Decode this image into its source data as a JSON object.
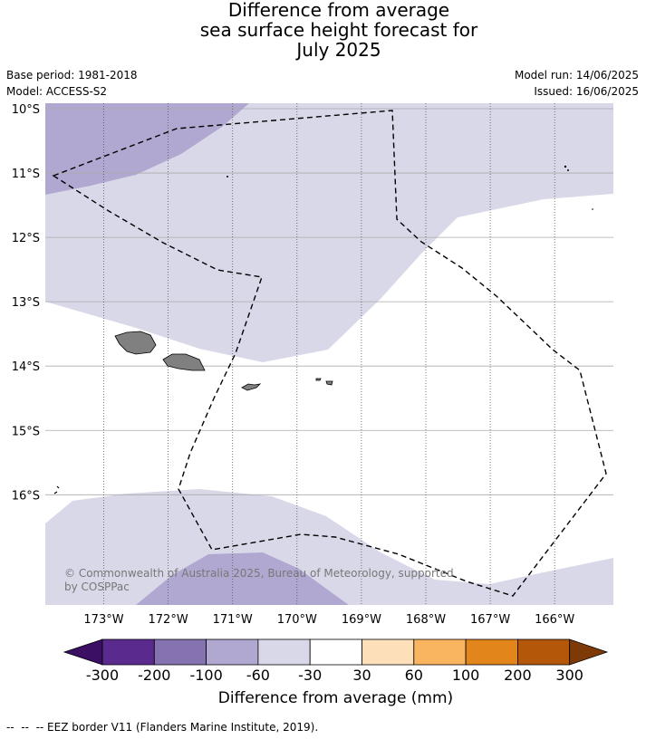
{
  "title_lines": [
    "Difference from average",
    "sea surface height forecast for",
    "July 2025"
  ],
  "meta": {
    "base_period": "Base period: 1981-2018",
    "model": "Model: ACCESS-S2",
    "model_run": "Model run: 14/06/2025",
    "issued": "Issued: 16/06/2025"
  },
  "lat_labels": [
    "10°S",
    "11°S",
    "12°S",
    "13°S",
    "14°S",
    "15°S",
    "16°S"
  ],
  "lon_labels": [
    "173°W",
    "172°W",
    "171°W",
    "170°W",
    "169°W",
    "168°W",
    "167°W",
    "166°W"
  ],
  "copyright": "© Commonwealth of Australia 2025, Bureau of Meteorology, supported by COSPPac",
  "colorbar": {
    "ticks": [
      "-300",
      "-200",
      "-100",
      "-60",
      "-30",
      "30",
      "60",
      "100",
      "200",
      "300"
    ],
    "colors": [
      "#3b0f63",
      "#5b2a8e",
      "#8473b0",
      "#b0a8d1",
      "#d9d8e9",
      "#ffffff",
      "#fde0b9",
      "#f9b55f",
      "#e2851a",
      "#b55708",
      "#7d3a07"
    ],
    "title": "Difference from average (mm)"
  },
  "footnote": "--  --  -- EEZ border V11 (Flanders Marine Institute, 2019).",
  "colors": {
    "land": "#808080",
    "gridline": "#aaaaaa",
    "eez": "#000000"
  }
}
